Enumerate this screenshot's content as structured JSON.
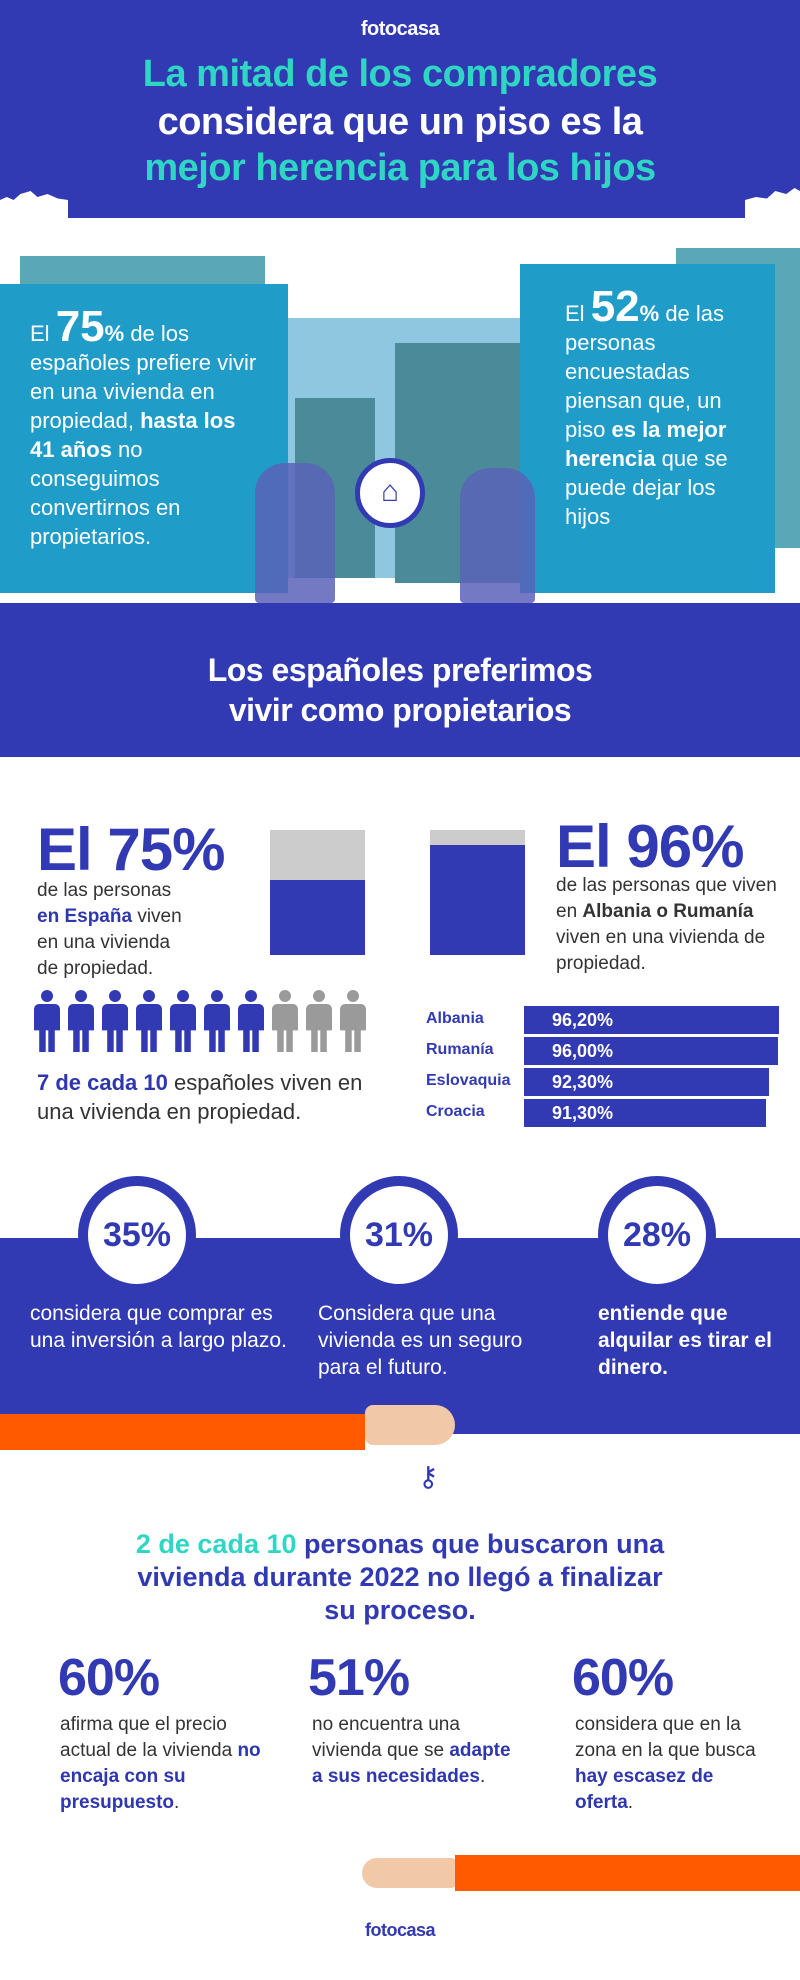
{
  "header": {
    "logo": "fotocasa",
    "title_line1": "La mitad de los compradores",
    "title_line2": "considera que un piso es la",
    "title_line3": "mejor herencia para los hijos"
  },
  "panel_left": {
    "pre": "El ",
    "value": "75",
    "unit": "%",
    "text1": " de los españoles prefiere vivir en una vivienda en propiedad, ",
    "bold": "hasta los 41 años",
    "text2": " no conseguimos convertirnos en propietarios."
  },
  "panel_right": {
    "pre": "El ",
    "value": "52",
    "unit": "%",
    "text1": " de las personas encuestadas piensan que, un piso ",
    "bold1": "es la mejor herencia",
    "text2": " que se puede dejar los hijos"
  },
  "band_title_line1": "Los españoles preferimos",
  "band_title_line2": "vivir como propietarios",
  "spain": {
    "headline": "El 75%",
    "t1": "de las personas ",
    "b1": "en España",
    "t2": " viven en una vivienda de propiedad."
  },
  "albania": {
    "headline": "El 96%",
    "t1": "de las personas que viven en ",
    "b1": "Albania o Rumanía",
    "t2": " viven en una vivienda de propiedad."
  },
  "people": {
    "owners": 7,
    "total": 10,
    "bold": "7 de cada 10",
    "text": " españoles viven en una vivienda en propiedad.",
    "colors": {
      "owner": "#3139b3",
      "other": "#9a9a9a"
    }
  },
  "chart_data": {
    "type": "bar",
    "orientation": "horizontal",
    "categories": [
      "Albania",
      "Rumanía",
      "Eslovaquia",
      "Croacia"
    ],
    "values": [
      96.2,
      96.0,
      92.3,
      91.3
    ],
    "labels": [
      "96,20%",
      "96,00%",
      "92,30%",
      "91,30%"
    ]
  },
  "circles": [
    {
      "value": "35%",
      "text": "considera que comprar es una inversión a largo plazo."
    },
    {
      "value": "31%",
      "text": "Considera que una vivienda es un seguro para el futuro."
    },
    {
      "value": "28%",
      "text": "entiende que alquilar es tirar el dinero."
    }
  ],
  "search": {
    "bold": "2 de cada 10",
    "text": " personas que buscaron una vivienda durante 2022 no llegó a finalizar su proceso."
  },
  "stats": [
    {
      "value": "60%",
      "t1": "afirma que el precio actual de la vivienda ",
      "b1": "no encaja con su presupuesto",
      "t2": "."
    },
    {
      "value": "51%",
      "t1": "no encuentra una vivienda que se ",
      "b1": "adapte a sus necesidades",
      "t2": "."
    },
    {
      "value": "60%",
      "t1": "considera que en la zona en la que busca ",
      "b1": "hay escasez de oferta",
      "t2": "."
    }
  ],
  "footer": {
    "logo": "fotocasa"
  },
  "colors": {
    "blue": "#3139b3",
    "teal": "#2fd6c3",
    "panel": "#1f9cc8",
    "orange": "#ff5a00"
  }
}
